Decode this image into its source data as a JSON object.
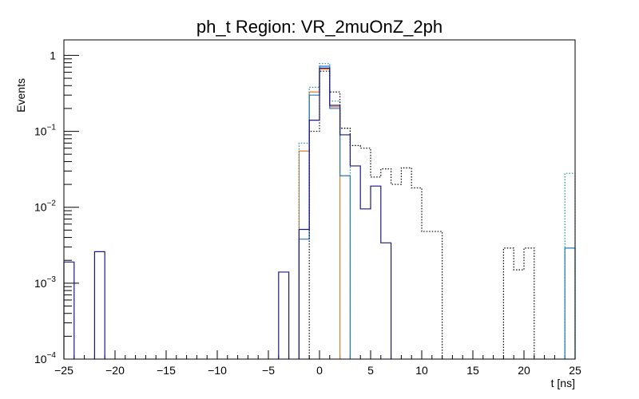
{
  "chart_data": {
    "type": "histogram",
    "title": "ph_t Region: VR_2muOnZ_2ph",
    "xlabel": "t [ns]",
    "ylabel": "Events",
    "xlim": [
      -25,
      25
    ],
    "ylim": [
      0.0001,
      1.6
    ],
    "y_scale": "log",
    "bin_width": 1,
    "x_ticks": [
      -25,
      -20,
      -15,
      -10,
      -5,
      0,
      5,
      10,
      15,
      20,
      25
    ],
    "x_tick_labels": [
      "−25",
      "−20",
      "−15",
      "−10",
      "−5",
      "0",
      "5",
      "10",
      "15",
      "20",
      "25"
    ],
    "y_ticks": [
      {
        "value": 0.0001,
        "base": "10",
        "exp": "−4"
      },
      {
        "value": 0.001,
        "base": "10",
        "exp": "−3"
      },
      {
        "value": 0.01,
        "base": "10",
        "exp": "−2"
      },
      {
        "value": 0.1,
        "base": "10",
        "exp": "−1"
      },
      {
        "value": 1,
        "base": "1",
        "exp": ""
      }
    ],
    "series": [
      {
        "color": "#e8782a",
        "style": "solid",
        "bins": [
          [
            -2,
            0.055
          ],
          [
            -1,
            0.33
          ],
          [
            0,
            0.66
          ],
          [
            1,
            0.21
          ]
        ]
      },
      {
        "color": "#1f77c4",
        "style": "solid",
        "bins": [
          [
            -2,
            0.0038
          ],
          [
            -1,
            0.3
          ],
          [
            0,
            0.72
          ],
          [
            1,
            0.2
          ],
          [
            2,
            0.026
          ],
          [
            24,
            0.0029
          ]
        ]
      },
      {
        "color": "#1a8a8a",
        "style": "dotted",
        "bins": [
          [
            -2,
            0.07
          ],
          [
            -1,
            0.38
          ],
          [
            0,
            0.78
          ],
          [
            1,
            0.25
          ],
          [
            2,
            0.11
          ],
          [
            24,
            0.028
          ]
        ]
      },
      {
        "color": "#000000",
        "style": "dotted",
        "bins": [
          [
            -1,
            0.1
          ],
          [
            0,
            0.62
          ],
          [
            1,
            0.33
          ],
          [
            2,
            0.11
          ],
          [
            3,
            0.065
          ],
          [
            4,
            0.06
          ],
          [
            5,
            0.025
          ],
          [
            6,
            0.032
          ],
          [
            7,
            0.02
          ],
          [
            8,
            0.033
          ],
          [
            9,
            0.018
          ],
          [
            10,
            0.0048
          ],
          [
            11,
            0.0048
          ],
          [
            18,
            0.0029
          ],
          [
            19,
            0.0015
          ],
          [
            20,
            0.0029
          ]
        ]
      },
      {
        "color": "#1a1a80",
        "style": "solid",
        "bins": [
          [
            -25,
            0.0019
          ],
          [
            -22,
            0.0026
          ],
          [
            -4,
            0.0014
          ],
          [
            -2,
            0.0051
          ],
          [
            -1,
            0.14
          ],
          [
            0,
            0.68
          ],
          [
            1,
            0.22
          ],
          [
            2,
            0.09
          ],
          [
            3,
            0.035
          ],
          [
            4,
            0.0095
          ],
          [
            5,
            0.019
          ],
          [
            6,
            0.0034
          ]
        ]
      }
    ]
  }
}
